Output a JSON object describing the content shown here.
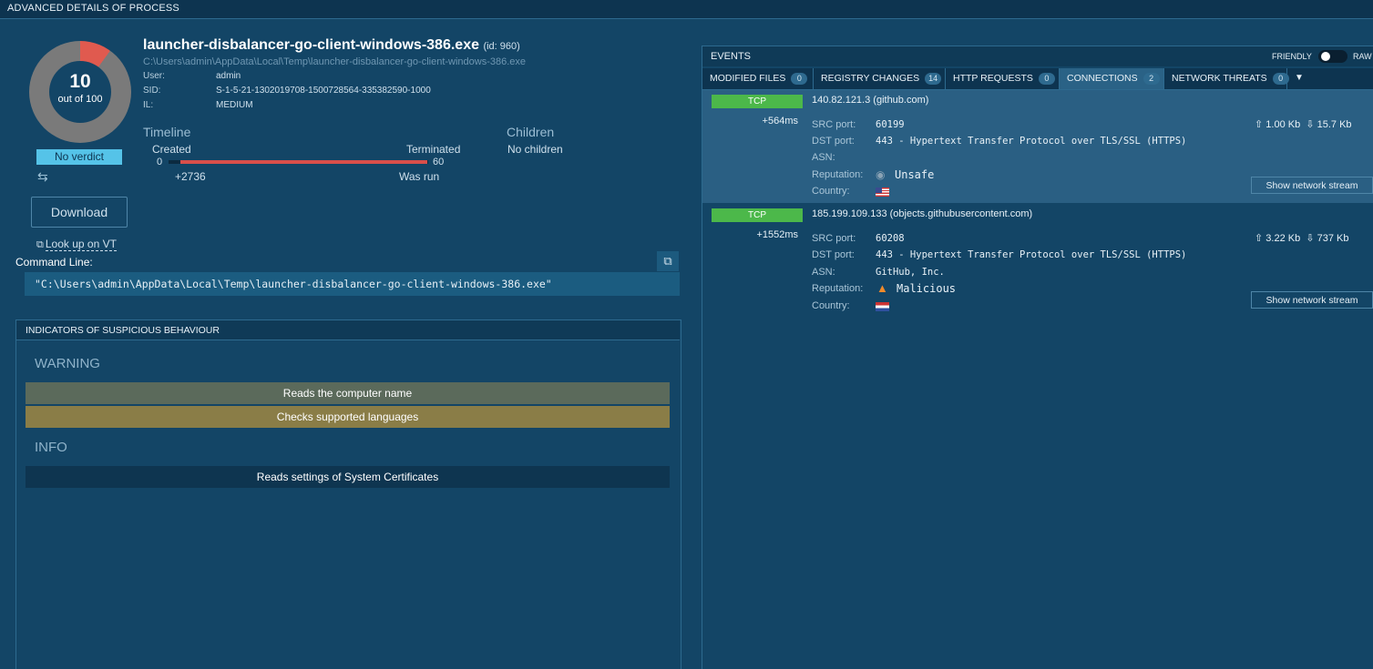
{
  "window": {
    "title": "ADVANCED DETAILS OF PROCESS"
  },
  "score": {
    "value": "10",
    "out_of": "out of 100",
    "verdict": "No verdict",
    "ring_fraction": 0.1,
    "ring_color": "#e05a4f"
  },
  "actions": {
    "download": "Download",
    "lookup_vt": "Look up on VT"
  },
  "process": {
    "name": "launcher-disbalancer-go-client-windows-386.exe",
    "id_label": "(id: 960)",
    "path": "C:\\Users\\admin\\AppData\\Local\\Temp\\launcher-disbalancer-go-client-windows-386.exe",
    "fields": [
      {
        "label": "User:",
        "value": "admin"
      },
      {
        "label": "SID:",
        "value": "S-1-5-21-1302019708-1500728564-335382590-1000"
      },
      {
        "label": "IL:",
        "value": "MEDIUM"
      }
    ]
  },
  "timeline": {
    "title": "Timeline",
    "created": "Created",
    "terminated": "Terminated",
    "start": "0",
    "end": "60",
    "delta": "+2736",
    "status": "Was run"
  },
  "children": {
    "title": "Children",
    "value": "No children"
  },
  "command": {
    "label": "Command Line:",
    "value": "\"C:\\Users\\admin\\AppData\\Local\\Temp\\launcher-disbalancer-go-client-windows-386.exe\""
  },
  "indicators": {
    "title": "INDICATORS OF SUSPICIOUS BEHAVIOUR",
    "warning_title": "WARNING",
    "warning_items": [
      "Reads the computer name",
      "Checks supported languages"
    ],
    "info_title": "INFO",
    "info_items": [
      "Reads settings of System Certificates"
    ],
    "colors": {
      "warning_row1": "#5b6a5b",
      "warning_row2": "#8a7d47",
      "info_row": "#0e3550"
    }
  },
  "events": {
    "title": "EVENTS",
    "friendly": "FRIENDLY",
    "raw": "RAW",
    "tabs": [
      {
        "label": "MODIFIED FILES",
        "count": "0"
      },
      {
        "label": "REGISTRY CHANGES",
        "count": "14"
      },
      {
        "label": "HTTP REQUESTS",
        "count": "0"
      },
      {
        "label": "CONNECTIONS",
        "count": "2"
      },
      {
        "label": "NETWORK THREATS",
        "count": "0"
      }
    ],
    "more": "▼",
    "labels": {
      "src": "SRC port:",
      "dst": "DST port:",
      "asn": "ASN:",
      "rep": "Reputation:",
      "country": "Country:"
    },
    "connections": [
      {
        "protocol": "TCP",
        "host": "140.82.121.3 (github.com)",
        "time": "+564ms",
        "src_port": "60199",
        "dst_port": "443 - Hypertext Transfer Protocol over TLS/SSL (HTTPS)",
        "asn": "",
        "reputation": "Unsafe",
        "reputation_icon": "eye-icon",
        "country": "United States",
        "upload": "1.00 Kb",
        "download": "15.7 Kb",
        "stream_button": "Show network stream"
      },
      {
        "protocol": "TCP",
        "host": "185.199.109.133 (objects.githubusercontent.com)",
        "time": "+1552ms",
        "src_port": "60208",
        "dst_port": "443 - Hypertext Transfer Protocol over TLS/SSL (HTTPS)",
        "asn": "GitHub, Inc.",
        "reputation": "Malicious",
        "reputation_icon": "fire-icon",
        "country": "Netherlands",
        "upload": "3.22 Kb",
        "download": "737 Kb",
        "stream_button": "Show network stream"
      }
    ]
  },
  "icons": {
    "swap": "arrows-icon",
    "external": "external-link-icon",
    "copy": "copy-icon",
    "upload": "upload-icon",
    "download": "download-icon"
  }
}
